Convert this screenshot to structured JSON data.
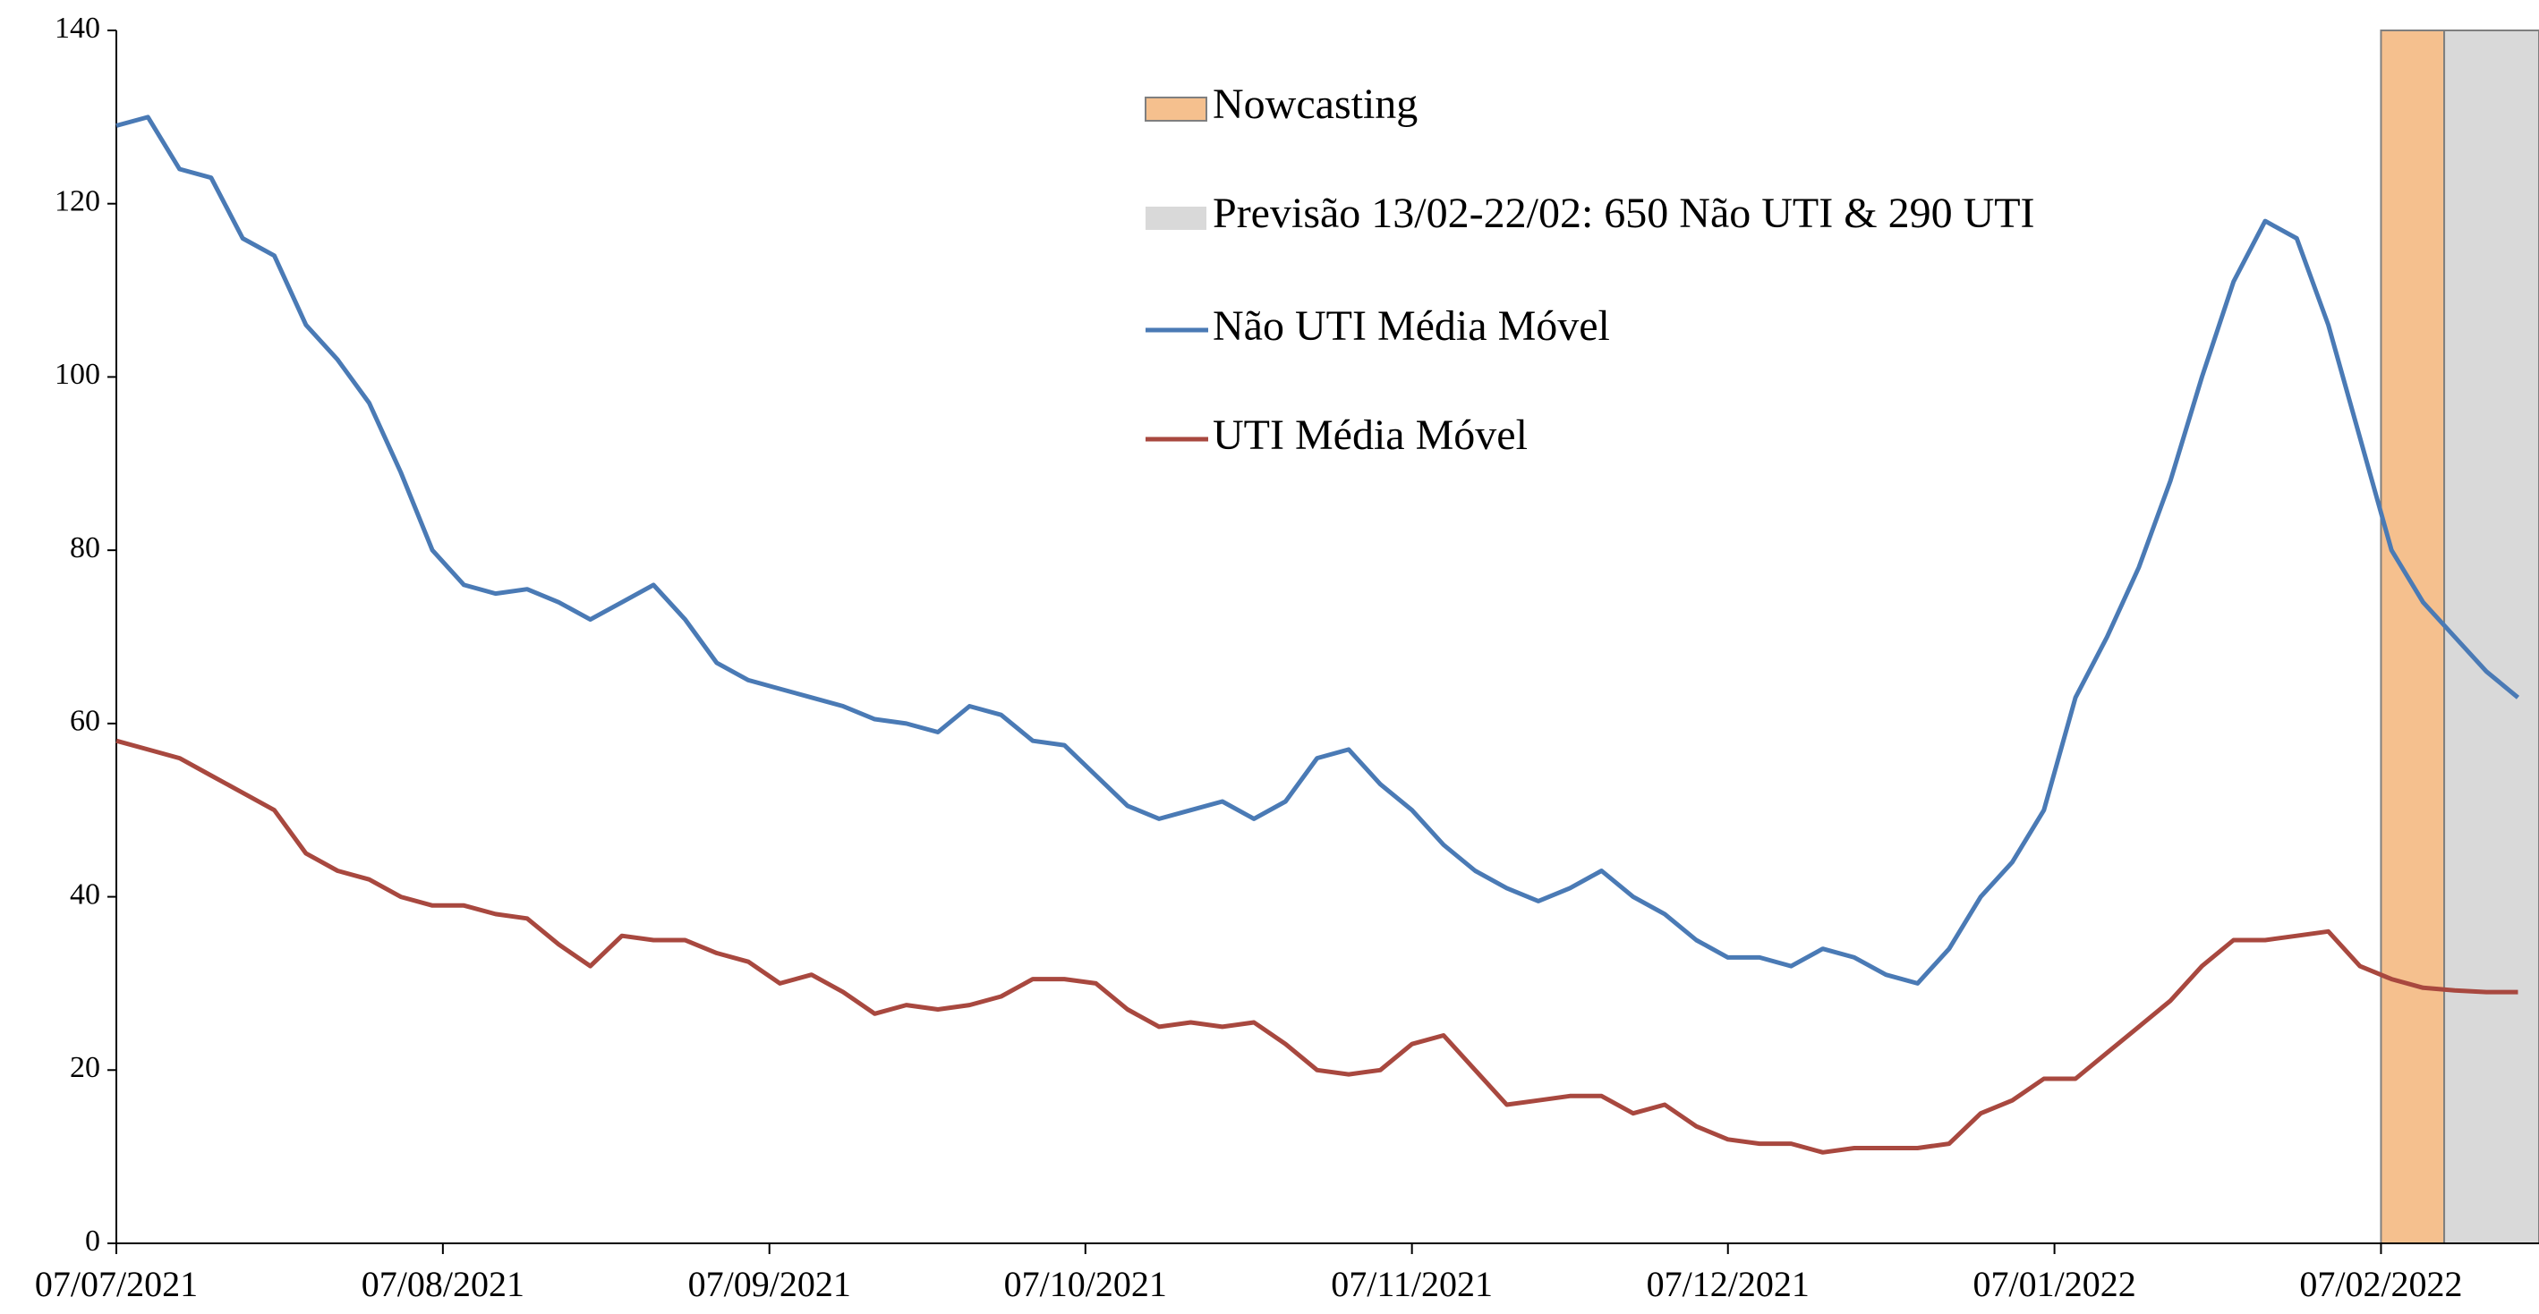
{
  "chart_data": {
    "type": "line",
    "x": [
      "07/07/2021",
      "10/07/2021",
      "13/07/2021",
      "16/07/2021",
      "19/07/2021",
      "22/07/2021",
      "25/07/2021",
      "28/07/2021",
      "31/07/2021",
      "03/08/2021",
      "06/08/2021",
      "09/08/2021",
      "12/08/2021",
      "15/08/2021",
      "18/08/2021",
      "21/08/2021",
      "24/08/2021",
      "27/08/2021",
      "30/08/2021",
      "02/09/2021",
      "05/09/2021",
      "08/09/2021",
      "11/09/2021",
      "14/09/2021",
      "17/09/2021",
      "20/09/2021",
      "23/09/2021",
      "26/09/2021",
      "29/09/2021",
      "02/10/2021",
      "05/10/2021",
      "08/10/2021",
      "11/10/2021",
      "14/10/2021",
      "17/10/2021",
      "20/10/2021",
      "23/10/2021",
      "26/10/2021",
      "29/10/2021",
      "01/11/2021",
      "04/11/2021",
      "07/11/2021",
      "10/11/2021",
      "13/11/2021",
      "16/11/2021",
      "19/11/2021",
      "22/11/2021",
      "25/11/2021",
      "28/11/2021",
      "01/12/2021",
      "04/12/2021",
      "07/12/2021",
      "10/12/2021",
      "13/12/2021",
      "16/12/2021",
      "19/12/2021",
      "22/12/2021",
      "25/12/2021",
      "28/12/2021",
      "31/12/2021",
      "03/01/2022",
      "06/01/2022",
      "09/01/2022",
      "12/01/2022",
      "15/01/2022",
      "18/01/2022",
      "21/01/2022",
      "24/01/2022",
      "27/01/2022",
      "30/01/2022",
      "02/02/2022",
      "05/02/2022",
      "08/02/2022",
      "11/02/2022",
      "14/02/2022",
      "17/02/2022",
      "20/02/2022"
    ],
    "series": [
      {
        "name": "Não UTI Média Móvel",
        "color": "#4a7ab5",
        "values": [
          129,
          130,
          124,
          123,
          116,
          114,
          106,
          102,
          97,
          89,
          80,
          76,
          75,
          75.5,
          74,
          72,
          74,
          76,
          72,
          67,
          65,
          64,
          63,
          62,
          60.5,
          60,
          59,
          62,
          61,
          58,
          57.5,
          54,
          50.5,
          49,
          50,
          51,
          49,
          51,
          56,
          57,
          53,
          50,
          46,
          43,
          41,
          39.5,
          41,
          43,
          40,
          38,
          35,
          33,
          33,
          32,
          34,
          33,
          31,
          30,
          34,
          40,
          44,
          50,
          63,
          70,
          78,
          88,
          100,
          111,
          118,
          116,
          106,
          93,
          80,
          74,
          70,
          66,
          63
        ]
      },
      {
        "name": "UTI Média Móvel",
        "color": "#a8483f",
        "values": [
          58,
          57,
          56,
          54,
          52,
          50,
          45,
          43,
          42,
          40,
          39,
          39,
          38,
          37.5,
          34.5,
          32,
          35.5,
          35,
          35,
          33.5,
          32.5,
          30,
          31,
          29,
          26.5,
          27.5,
          27,
          27.5,
          28.5,
          30.5,
          30.5,
          30,
          27,
          25,
          25.5,
          25,
          25.5,
          23,
          20,
          19.5,
          20,
          23,
          24,
          20,
          16,
          16.5,
          17,
          17,
          15,
          16,
          13.5,
          12,
          11.5,
          11.5,
          10.5,
          11,
          11,
          11,
          11.5,
          15,
          16.5,
          19,
          19,
          22,
          25,
          28,
          32,
          35,
          35,
          35.5,
          36,
          32,
          30.5,
          29.5,
          29.2,
          29,
          29
        ]
      }
    ],
    "regions": [
      {
        "name": "Nowcasting",
        "color": "#f5c08e",
        "start": "07/02/2022",
        "end": "13/02/2022"
      },
      {
        "name": "Previsão 13/02-22/02: 650 Não UTI & 290 UTI",
        "color": "#d9d9d9",
        "start": "13/02/2022",
        "end": "22/02/2022"
      }
    ],
    "xlim": [
      "07/07/2021",
      "22/02/2022"
    ],
    "xticks": [
      "07/07/2021",
      "07/08/2021",
      "07/09/2021",
      "07/10/2021",
      "07/11/2021",
      "07/12/2021",
      "07/01/2022",
      "07/02/2022"
    ],
    "ylim": [
      0,
      140
    ],
    "yticks": [
      0,
      20,
      40,
      60,
      80,
      100,
      120,
      140
    ],
    "grid": false
  }
}
